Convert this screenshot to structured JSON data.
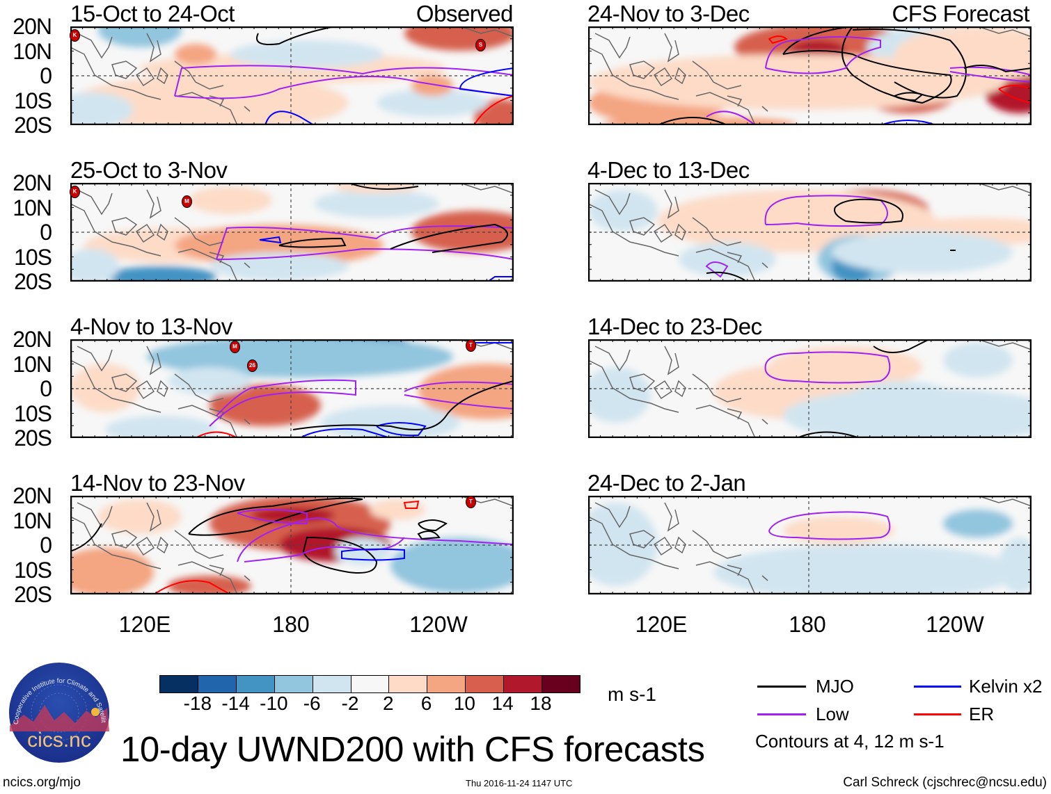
{
  "panels": {
    "left": [
      {
        "title": "15-Oct to 24-Oct",
        "tag": "Observed",
        "storms": [
          "K",
          "S"
        ]
      },
      {
        "title": "25-Oct to 3-Nov",
        "tag": "",
        "storms": [
          "K",
          "M"
        ]
      },
      {
        "title": "4-Nov to 13-Nov",
        "tag": "",
        "storms": [
          "M",
          "26",
          "T"
        ]
      },
      {
        "title": "14-Nov to 23-Nov",
        "tag": "",
        "storms": [
          "T"
        ]
      }
    ],
    "right": [
      {
        "title": "24-Nov to 3-Dec",
        "tag": "CFS Forecast"
      },
      {
        "title": "4-Dec to 13-Dec",
        "tag": ""
      },
      {
        "title": "14-Dec to 23-Dec",
        "tag": ""
      },
      {
        "title": "24-Dec to 2-Jan",
        "tag": ""
      }
    ]
  },
  "lat_labels": [
    "20N",
    "10N",
    "0",
    "10S",
    "20S"
  ],
  "lon_labels": [
    "120E",
    "180",
    "120W"
  ],
  "colorbar": {
    "colors": [
      "#053061",
      "#2166ac",
      "#4393c3",
      "#92c5de",
      "#d1e5f0",
      "#f7f7f7",
      "#fddbc7",
      "#f4a582",
      "#d6604d",
      "#b2182b",
      "#67001f"
    ],
    "labels": [
      "-18",
      "-14",
      "-10",
      "-6",
      "-2",
      "2",
      "6",
      "10",
      "14",
      "18"
    ],
    "units": "m s-1"
  },
  "legend": {
    "items": [
      {
        "label": "MJO",
        "color": "#000000"
      },
      {
        "label": "Kelvin x2",
        "color": "#0000ff"
      },
      {
        "label": "Low",
        "color": "#a020f0"
      },
      {
        "label": "ER",
        "color": "#ff0000"
      }
    ],
    "note": "Contours at 4, 12 m s-1"
  },
  "title": "10-day UWND200 with CFS forecasts",
  "logo_text": "cics.nc",
  "logo_ring_text": "Cooperative Institute for Climate and Satellites",
  "footer": {
    "left": "ncics.org/mjo",
    "center": "Thu 2016-11-24 1147 UTC",
    "right": "Carl Schreck (cjschrec@ncsu.edu)"
  }
}
